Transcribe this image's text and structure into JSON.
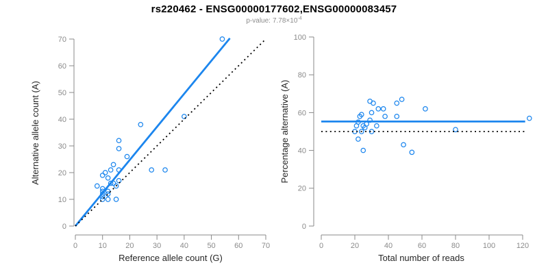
{
  "header": {
    "title": "rs220462 - ENSG00000177602,ENSG00000083457",
    "pvalue_label": "p-value:",
    "pvalue_base": "7.78×10",
    "pvalue_exponent": "-4"
  },
  "colors": {
    "accent_blue": "#1C86EE",
    "axis_gray": "#888888",
    "tick_label_gray": "#8a8a8a",
    "dotted_black": "#000000",
    "background": "#ffffff"
  },
  "chart_data": [
    {
      "type": "scatter",
      "name": "allele-counts",
      "xlabel": "Reference allele count (G)",
      "ylabel": "Alternative allele count (A)",
      "xlim": [
        0,
        70
      ],
      "ylim": [
        0,
        70
      ],
      "xticks": [
        0,
        10,
        20,
        30,
        40,
        50,
        60,
        70
      ],
      "yticks": [
        0,
        10,
        20,
        30,
        40,
        50,
        60,
        70
      ],
      "grid": false,
      "legend": "none",
      "marker": "open-circle",
      "points": [
        [
          8,
          15
        ],
        [
          10,
          10
        ],
        [
          10,
          11
        ],
        [
          10,
          12
        ],
        [
          10,
          13
        ],
        [
          10,
          14
        ],
        [
          10,
          19
        ],
        [
          11,
          20
        ],
        [
          12,
          10
        ],
        [
          12,
          12
        ],
        [
          12,
          13
        ],
        [
          12,
          18
        ],
        [
          13,
          16
        ],
        [
          13,
          21
        ],
        [
          14,
          16
        ],
        [
          14,
          23
        ],
        [
          15,
          10
        ],
        [
          15,
          15
        ],
        [
          16,
          17
        ],
        [
          16,
          21
        ],
        [
          16,
          29
        ],
        [
          16,
          32
        ],
        [
          19,
          26
        ],
        [
          24,
          38
        ],
        [
          28,
          21
        ],
        [
          33,
          21
        ],
        [
          40,
          41
        ],
        [
          54,
          70
        ]
      ],
      "lines": [
        {
          "name": "regression-line",
          "style": "solid",
          "color_key": "accent_blue",
          "x1": 0,
          "y1": 0,
          "x2": 56.8,
          "y2": 70.3,
          "width": 2.8
        },
        {
          "name": "identity-line",
          "style": "dotted",
          "color_key": "dotted_black",
          "x1": 0,
          "y1": 0,
          "x2": 70,
          "y2": 70,
          "width": 1.8
        }
      ]
    },
    {
      "type": "scatter",
      "name": "percentage-vs-depth",
      "xlabel": "Total number of reads",
      "ylabel": "Percentage alternative (A)",
      "xlim": [
        0,
        124
      ],
      "ylim": [
        0,
        100
      ],
      "xticks": [
        0,
        20,
        40,
        60,
        80,
        100,
        120
      ],
      "yticks": [
        0,
        20,
        40,
        60,
        80,
        100
      ],
      "grid": false,
      "legend": "none",
      "marker": "open-circle",
      "points": [
        [
          20,
          50
        ],
        [
          21,
          53
        ],
        [
          22,
          55
        ],
        [
          22,
          46
        ],
        [
          23,
          58
        ],
        [
          24,
          59
        ],
        [
          24,
          50
        ],
        [
          25,
          53
        ],
        [
          25,
          40
        ],
        [
          26,
          52
        ],
        [
          27,
          54
        ],
        [
          29,
          66
        ],
        [
          29,
          56
        ],
        [
          30,
          60
        ],
        [
          30,
          50
        ],
        [
          31,
          65
        ],
        [
          33,
          53
        ],
        [
          34,
          62
        ],
        [
          37,
          62
        ],
        [
          38,
          58
        ],
        [
          45,
          65
        ],
        [
          45,
          58
        ],
        [
          48,
          67
        ],
        [
          49,
          43
        ],
        [
          54,
          39
        ],
        [
          62,
          62
        ],
        [
          80,
          51
        ],
        [
          124,
          57
        ]
      ],
      "lines": [
        {
          "name": "mean-line",
          "style": "solid",
          "color_key": "accent_blue",
          "x1": 0,
          "y1": 55.3,
          "x2": 121.5,
          "y2": 55.3,
          "width": 2.8
        },
        {
          "name": "null-line",
          "style": "dotted",
          "color_key": "dotted_black",
          "x1": 0,
          "y1": 50,
          "x2": 121.5,
          "y2": 50,
          "width": 1.8
        }
      ]
    }
  ]
}
